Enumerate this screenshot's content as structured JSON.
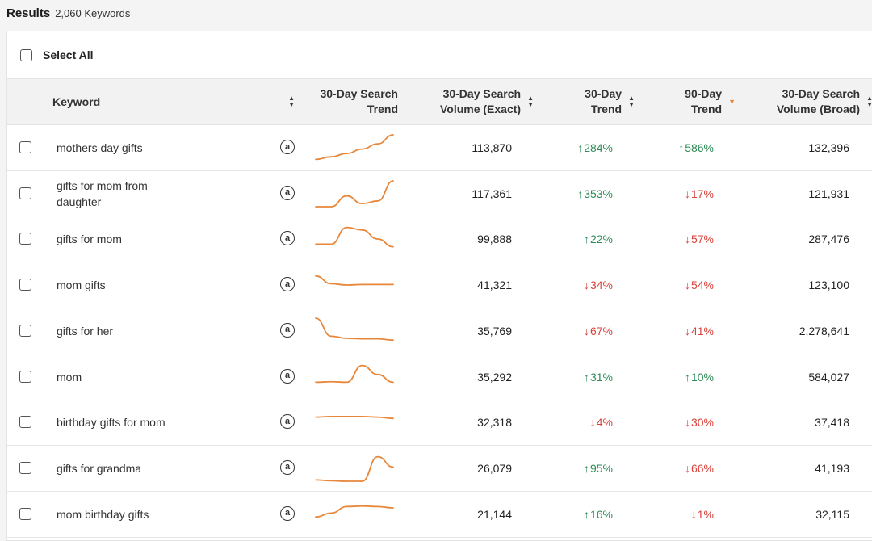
{
  "header": {
    "title": "Results",
    "count": "2,060 Keywords"
  },
  "select_all": {
    "label": "Select All"
  },
  "columns": {
    "keyword": "Keyword",
    "search_trend": "30-Day Search\nTrend",
    "volume_exact": "30-Day Search\nVolume (Exact)",
    "trend_30": "30-Day\nTrend",
    "trend_90": "90-Day\nTrend",
    "volume_broad": "30-Day Search\nVolume (Broad)"
  },
  "icons": {
    "amazon": "amazon-icon",
    "sort": "sort-icon",
    "arrow_up": "↑",
    "arrow_down": "↓"
  },
  "colors": {
    "up": "#2e8b57",
    "down": "#d9413a",
    "sparkline": "#e8873a",
    "active_sort": "#e8873a"
  },
  "sort": {
    "column": "trend_90",
    "direction": "descending"
  },
  "rows": [
    {
      "keyword": "mothers day gifts",
      "volume_exact": "113,870",
      "trend_30_dir": "up",
      "trend_30": "284%",
      "trend_90_dir": "up",
      "trend_90": "586%",
      "volume_broad": "132,396",
      "spark": [
        0.05,
        0.15,
        0.28,
        0.45,
        0.65,
        1.0
      ]
    },
    {
      "keyword": "gifts for mom from daughter",
      "volume_exact": "117,361",
      "trend_30_dir": "up",
      "trend_30": "353%",
      "trend_90_dir": "down",
      "trend_90": "17%",
      "volume_broad": "121,931",
      "spark": [
        0.0,
        0.0,
        0.42,
        0.12,
        0.22,
        1.0
      ]
    },
    {
      "keyword": "gifts for mom",
      "volume_exact": "99,888",
      "trend_30_dir": "up",
      "trend_30": "22%",
      "trend_90_dir": "down",
      "trend_90": "57%",
      "volume_broad": "287,476",
      "spark": [
        0.3,
        0.3,
        0.95,
        0.85,
        0.5,
        0.2
      ]
    },
    {
      "keyword": "mom gifts",
      "volume_exact": "41,321",
      "trend_30_dir": "down",
      "trend_30": "34%",
      "trend_90_dir": "down",
      "trend_90": "54%",
      "volume_broad": "123,100",
      "spark": [
        0.85,
        0.55,
        0.5,
        0.52,
        0.52,
        0.52
      ]
    },
    {
      "keyword": "gifts for her",
      "volume_exact": "35,769",
      "trend_30_dir": "down",
      "trend_30": "67%",
      "trend_90_dir": "down",
      "trend_90": "41%",
      "volume_broad": "2,278,641",
      "spark": [
        1.0,
        0.3,
        0.22,
        0.2,
        0.2,
        0.15
      ]
    },
    {
      "keyword": "mom",
      "volume_exact": "35,292",
      "trend_30_dir": "up",
      "trend_30": "31%",
      "trend_90_dir": "up",
      "trend_90": "10%",
      "volume_broad": "584,027",
      "spark": [
        0.3,
        0.32,
        0.3,
        0.95,
        0.6,
        0.3
      ]
    },
    {
      "keyword": "birthday gifts for mom",
      "volume_exact": "32,318",
      "trend_30_dir": "down",
      "trend_30": "4%",
      "trend_90_dir": "down",
      "trend_90": "30%",
      "volume_broad": "37,418",
      "spark": [
        0.7,
        0.72,
        0.72,
        0.72,
        0.7,
        0.65
      ]
    },
    {
      "keyword": "gifts for grandma",
      "volume_exact": "26,079",
      "trend_30_dir": "up",
      "trend_30": "95%",
      "trend_90_dir": "down",
      "trend_90": "66%",
      "volume_broad": "41,193",
      "spark": [
        0.05,
        0.02,
        0.0,
        0.0,
        0.95,
        0.55
      ]
    },
    {
      "keyword": "mom birthday gifts",
      "volume_exact": "21,144",
      "trend_30_dir": "up",
      "trend_30": "16%",
      "trend_90_dir": "down",
      "trend_90": "1%",
      "volume_broad": "32,115",
      "spark": [
        0.4,
        0.55,
        0.8,
        0.82,
        0.8,
        0.75
      ]
    }
  ]
}
